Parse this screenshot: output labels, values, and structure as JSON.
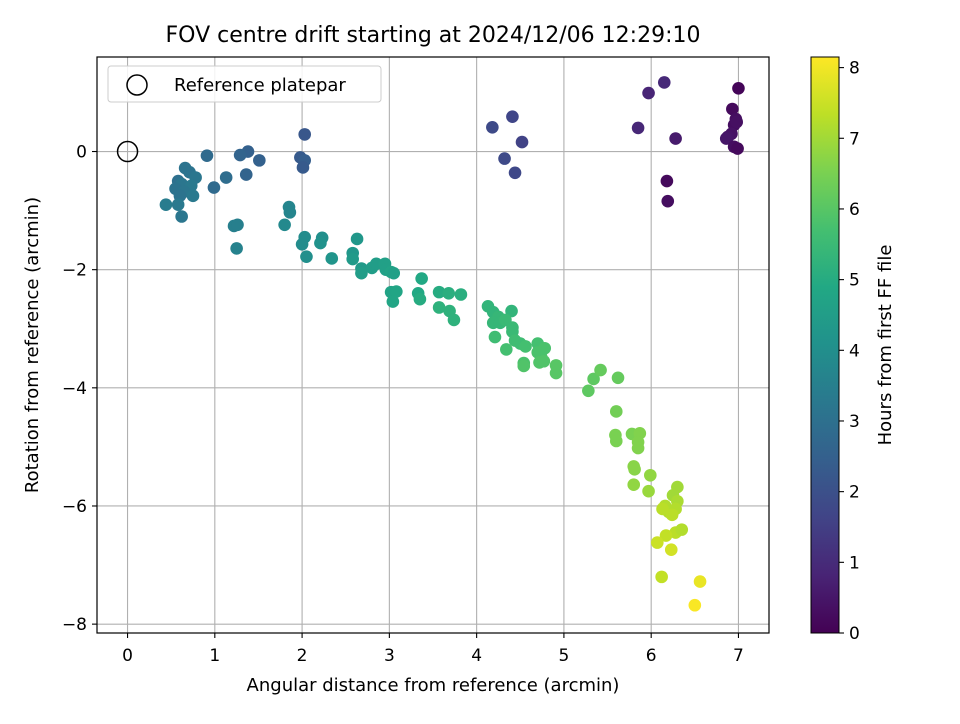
{
  "chart_data": {
    "type": "scatter",
    "title": "FOV centre drift starting at 2024/12/06 12:29:10",
    "xlabel": "Angular distance from reference (arcmin)",
    "ylabel": "Rotation from reference (arcmin)",
    "xlim": [
      -0.35,
      7.35
    ],
    "ylim": [
      -8.15,
      1.6
    ],
    "xticks": [
      0,
      1,
      2,
      3,
      4,
      5,
      6,
      7
    ],
    "yticks": [
      0,
      -2,
      -4,
      -6,
      -8
    ],
    "xtick_labels": [
      "0",
      "1",
      "2",
      "3",
      "4",
      "5",
      "6",
      "7"
    ],
    "ytick_labels": [
      "0",
      "−2",
      "−4",
      "−6",
      "−8"
    ],
    "grid": true,
    "legend": {
      "placement": "upper-left",
      "label": "Reference platepar"
    },
    "reference_point": {
      "x": 0,
      "y": 0
    },
    "colorbar": {
      "label": "Hours from first FF file",
      "range": [
        0,
        8.15
      ],
      "ticks": [
        0,
        1,
        2,
        3,
        4,
        5,
        6,
        7,
        8
      ],
      "tick_labels": [
        "0",
        "1",
        "2",
        "3",
        "4",
        "5",
        "6",
        "7",
        "8"
      ],
      "colormap": "viridis"
    },
    "series": [
      {
        "fields": [
          "x",
          "y",
          "hours"
        ],
        "points": [
          [
            7.0,
            1.07,
            0.1
          ],
          [
            6.93,
            0.72,
            0.2
          ],
          [
            6.97,
            0.55,
            0.3
          ],
          [
            6.95,
            0.45,
            0.3
          ],
          [
            6.98,
            0.5,
            0.35
          ],
          [
            6.92,
            0.3,
            0.4
          ],
          [
            6.88,
            0.25,
            0.45
          ],
          [
            6.86,
            0.22,
            0.5
          ],
          [
            6.95,
            0.08,
            0.3
          ],
          [
            6.99,
            0.05,
            0.2
          ],
          [
            6.28,
            0.22,
            0.6
          ],
          [
            6.18,
            -0.5,
            0.2
          ],
          [
            6.19,
            -0.84,
            0.3
          ],
          [
            6.15,
            1.17,
            0.95
          ],
          [
            5.97,
            0.99,
            0.85
          ],
          [
            5.85,
            0.4,
            0.9
          ],
          [
            4.41,
            0.59,
            1.7
          ],
          [
            4.18,
            0.41,
            1.8
          ],
          [
            4.52,
            0.16,
            1.6
          ],
          [
            4.32,
            -0.12,
            1.8
          ],
          [
            4.44,
            -0.36,
            1.75
          ],
          [
            2.03,
            0.29,
            2.2
          ],
          [
            1.98,
            -0.1,
            2.3
          ],
          [
            2.03,
            -0.15,
            2.4
          ],
          [
            2.01,
            -0.27,
            2.3
          ],
          [
            1.38,
            0.0,
            2.5
          ],
          [
            1.29,
            -0.06,
            2.6
          ],
          [
            1.51,
            -0.15,
            2.5
          ],
          [
            1.36,
            -0.39,
            2.6
          ],
          [
            0.91,
            -0.07,
            2.8
          ],
          [
            1.13,
            -0.44,
            2.9
          ],
          [
            0.99,
            -0.61,
            2.8
          ],
          [
            0.66,
            -0.28,
            3.1
          ],
          [
            0.71,
            -0.35,
            3.1
          ],
          [
            0.78,
            -0.44,
            3.2
          ],
          [
            0.58,
            -0.5,
            3.0
          ],
          [
            0.62,
            -0.55,
            3.2
          ],
          [
            0.73,
            -0.58,
            3.3
          ],
          [
            0.55,
            -0.63,
            3.1
          ],
          [
            0.65,
            -0.68,
            3.2
          ],
          [
            0.75,
            -0.75,
            3.3
          ],
          [
            0.6,
            -0.75,
            3.1
          ],
          [
            0.44,
            -0.9,
            3.4
          ],
          [
            0.58,
            -0.9,
            3.3
          ],
          [
            0.62,
            -1.1,
            3.2
          ],
          [
            1.22,
            -1.26,
            3.5
          ],
          [
            1.26,
            -1.24,
            3.5
          ],
          [
            1.25,
            -1.64,
            3.6
          ],
          [
            1.85,
            -0.94,
            3.7
          ],
          [
            1.86,
            -1.03,
            3.7
          ],
          [
            1.8,
            -1.24,
            3.8
          ],
          [
            2.03,
            -1.45,
            3.9
          ],
          [
            2.0,
            -1.57,
            3.9
          ],
          [
            2.05,
            -1.78,
            4.0
          ],
          [
            2.23,
            -1.46,
            4.0
          ],
          [
            2.21,
            -1.55,
            4.1
          ],
          [
            2.34,
            -1.81,
            4.2
          ],
          [
            2.63,
            -1.48,
            4.3
          ],
          [
            2.58,
            -1.72,
            4.3
          ],
          [
            2.58,
            -1.82,
            4.4
          ],
          [
            2.68,
            -1.98,
            4.4
          ],
          [
            2.68,
            -2.06,
            4.5
          ],
          [
            2.8,
            -1.97,
            4.5
          ],
          [
            2.85,
            -1.9,
            4.5
          ],
          [
            2.95,
            -1.9,
            4.6
          ],
          [
            2.96,
            -2.0,
            4.6
          ],
          [
            3.02,
            -2.04,
            4.7
          ],
          [
            3.05,
            -2.06,
            4.6
          ],
          [
            3.02,
            -2.38,
            4.7
          ],
          [
            3.08,
            -2.37,
            4.8
          ],
          [
            3.04,
            -2.54,
            4.8
          ],
          [
            3.37,
            -2.15,
            4.9
          ],
          [
            3.33,
            -2.4,
            4.9
          ],
          [
            3.35,
            -2.5,
            5.0
          ],
          [
            3.57,
            -2.38,
            5.0
          ],
          [
            3.68,
            -2.4,
            5.1
          ],
          [
            3.82,
            -2.42,
            5.1
          ],
          [
            3.57,
            -2.64,
            5.2
          ],
          [
            3.69,
            -2.7,
            5.2
          ],
          [
            3.74,
            -2.85,
            5.2
          ],
          [
            4.13,
            -2.62,
            5.3
          ],
          [
            4.19,
            -2.72,
            5.3
          ],
          [
            4.25,
            -2.8,
            5.4
          ],
          [
            4.4,
            -2.7,
            5.3
          ],
          [
            4.19,
            -2.9,
            5.4
          ],
          [
            4.27,
            -2.9,
            5.4
          ],
          [
            4.33,
            -2.85,
            5.5
          ],
          [
            4.41,
            -2.98,
            5.5
          ],
          [
            4.41,
            -3.05,
            5.5
          ],
          [
            4.21,
            -3.14,
            5.6
          ],
          [
            4.44,
            -3.2,
            5.6
          ],
          [
            4.5,
            -3.25,
            5.6
          ],
          [
            4.56,
            -3.3,
            5.7
          ],
          [
            4.34,
            -3.35,
            5.7
          ],
          [
            4.7,
            -3.25,
            5.7
          ],
          [
            4.78,
            -3.33,
            5.8
          ],
          [
            4.7,
            -3.4,
            5.8
          ],
          [
            4.74,
            -3.48,
            5.8
          ],
          [
            4.72,
            -3.57,
            5.9
          ],
          [
            4.77,
            -3.55,
            5.9
          ],
          [
            4.54,
            -3.58,
            5.8
          ],
          [
            4.54,
            -3.63,
            5.9
          ],
          [
            4.91,
            -3.62,
            6.0
          ],
          [
            4.91,
            -3.75,
            6.0
          ],
          [
            5.28,
            -4.05,
            6.1
          ],
          [
            5.34,
            -3.85,
            6.1
          ],
          [
            5.42,
            -3.7,
            6.2
          ],
          [
            5.62,
            -3.83,
            6.2
          ],
          [
            5.6,
            -4.4,
            6.4
          ],
          [
            5.59,
            -4.8,
            6.5
          ],
          [
            5.6,
            -4.9,
            6.5
          ],
          [
            5.78,
            -4.78,
            6.5
          ],
          [
            5.87,
            -4.77,
            6.6
          ],
          [
            5.85,
            -4.92,
            6.6
          ],
          [
            5.85,
            -5.02,
            6.6
          ],
          [
            5.8,
            -5.33,
            6.7
          ],
          [
            5.81,
            -5.38,
            6.7
          ],
          [
            5.99,
            -5.48,
            6.8
          ],
          [
            5.8,
            -5.64,
            6.8
          ],
          [
            5.97,
            -5.75,
            6.9
          ],
          [
            6.3,
            -5.68,
            7.0
          ],
          [
            6.25,
            -5.82,
            7.0
          ],
          [
            6.3,
            -5.92,
            7.1
          ],
          [
            6.16,
            -6.0,
            7.2
          ],
          [
            6.2,
            -6.1,
            7.2
          ],
          [
            6.13,
            -6.05,
            7.3
          ],
          [
            6.28,
            -6.05,
            7.2
          ],
          [
            6.24,
            -6.15,
            7.3
          ],
          [
            6.28,
            -6.45,
            7.3
          ],
          [
            6.35,
            -6.4,
            7.2
          ],
          [
            6.17,
            -6.5,
            7.4
          ],
          [
            6.07,
            -6.62,
            7.5
          ],
          [
            6.23,
            -6.74,
            7.6
          ],
          [
            6.12,
            -7.2,
            7.4
          ],
          [
            6.56,
            -7.28,
            7.9
          ],
          [
            6.5,
            -7.68,
            8.1
          ]
        ]
      }
    ]
  }
}
